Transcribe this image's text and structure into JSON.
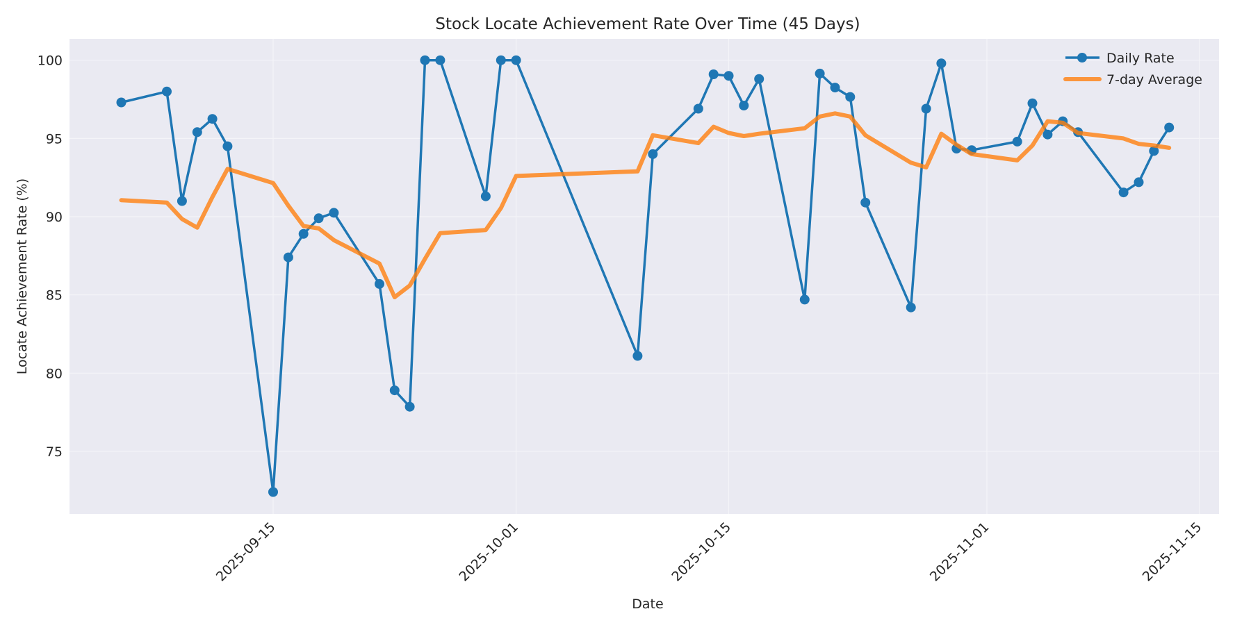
{
  "chart_data": {
    "type": "line",
    "title": "Stock Locate Achievement Rate Over Time (45 Days)",
    "xlabel": "Date",
    "ylabel": "Locate Achievement Rate (%)",
    "ylim": [
      71.05,
      101.36
    ],
    "xlim": [
      "2025-09-01",
      "2025-11-16"
    ],
    "grid": true,
    "legend_position": "upper right",
    "x_ticks": [
      "2025-09-15",
      "2025-10-01",
      "2025-10-15",
      "2025-11-01",
      "2025-11-15"
    ],
    "y_ticks": [
      75,
      80,
      85,
      90,
      95,
      100
    ],
    "x": [
      "2025-09-05",
      "2025-09-08",
      "2025-09-09",
      "2025-09-10",
      "2025-09-11",
      "2025-09-12",
      "2025-09-15",
      "2025-09-16",
      "2025-09-17",
      "2025-09-18",
      "2025-09-19",
      "2025-09-22",
      "2025-09-23",
      "2025-09-24",
      "2025-09-25",
      "2025-09-26",
      "2025-09-29",
      "2025-09-30",
      "2025-10-01",
      "2025-10-09",
      "2025-10-10",
      "2025-10-13",
      "2025-10-14",
      "2025-10-15",
      "2025-10-16",
      "2025-10-17",
      "2025-10-20",
      "2025-10-21",
      "2025-10-22",
      "2025-10-23",
      "2025-10-24",
      "2025-10-27",
      "2025-10-28",
      "2025-10-29",
      "2025-10-30",
      "2025-10-31",
      "2025-11-03",
      "2025-11-04",
      "2025-11-05",
      "2025-11-06",
      "2025-11-07",
      "2025-11-10",
      "2025-11-11",
      "2025-11-12",
      "2025-11-13"
    ],
    "series": [
      {
        "name": "Daily Rate",
        "color": "#1f77b4",
        "marker": "circle",
        "values": [
          97.3,
          98.0,
          91.0,
          95.4,
          96.25,
          94.5,
          72.4,
          87.4,
          88.9,
          89.9,
          90.25,
          85.7,
          78.9,
          77.85,
          100.0,
          100.0,
          91.3,
          100.0,
          100.0,
          81.1,
          94.0,
          96.9,
          99.1,
          99.0,
          97.1,
          98.8,
          84.7,
          99.15,
          98.25,
          97.65,
          90.9,
          84.2,
          96.9,
          99.8,
          94.35,
          94.25,
          94.8,
          97.25,
          95.25,
          96.1,
          95.4,
          91.55,
          92.2,
          94.2,
          95.7
        ]
      },
      {
        "name": "7-day Average",
        "color": "#ff7f0e",
        "marker": "none",
        "values": [
          91.05,
          90.9,
          89.85,
          89.3,
          91.25,
          93.05,
          92.15,
          90.7,
          89.4,
          89.25,
          88.5,
          87.0,
          84.85,
          85.6,
          87.3,
          88.95,
          89.15,
          90.55,
          92.6,
          92.9,
          95.2,
          94.7,
          95.75,
          95.35,
          95.15,
          95.3,
          95.65,
          96.4,
          96.6,
          96.4,
          95.2,
          93.45,
          93.15,
          95.3,
          94.6,
          94.0,
          93.6,
          94.55,
          96.1,
          96.0,
          95.35,
          95.0,
          94.65,
          94.55,
          94.4
        ]
      }
    ]
  },
  "layout": {
    "plot_bg": "#eaeaf2",
    "grid_color": "#f4f4f8"
  }
}
